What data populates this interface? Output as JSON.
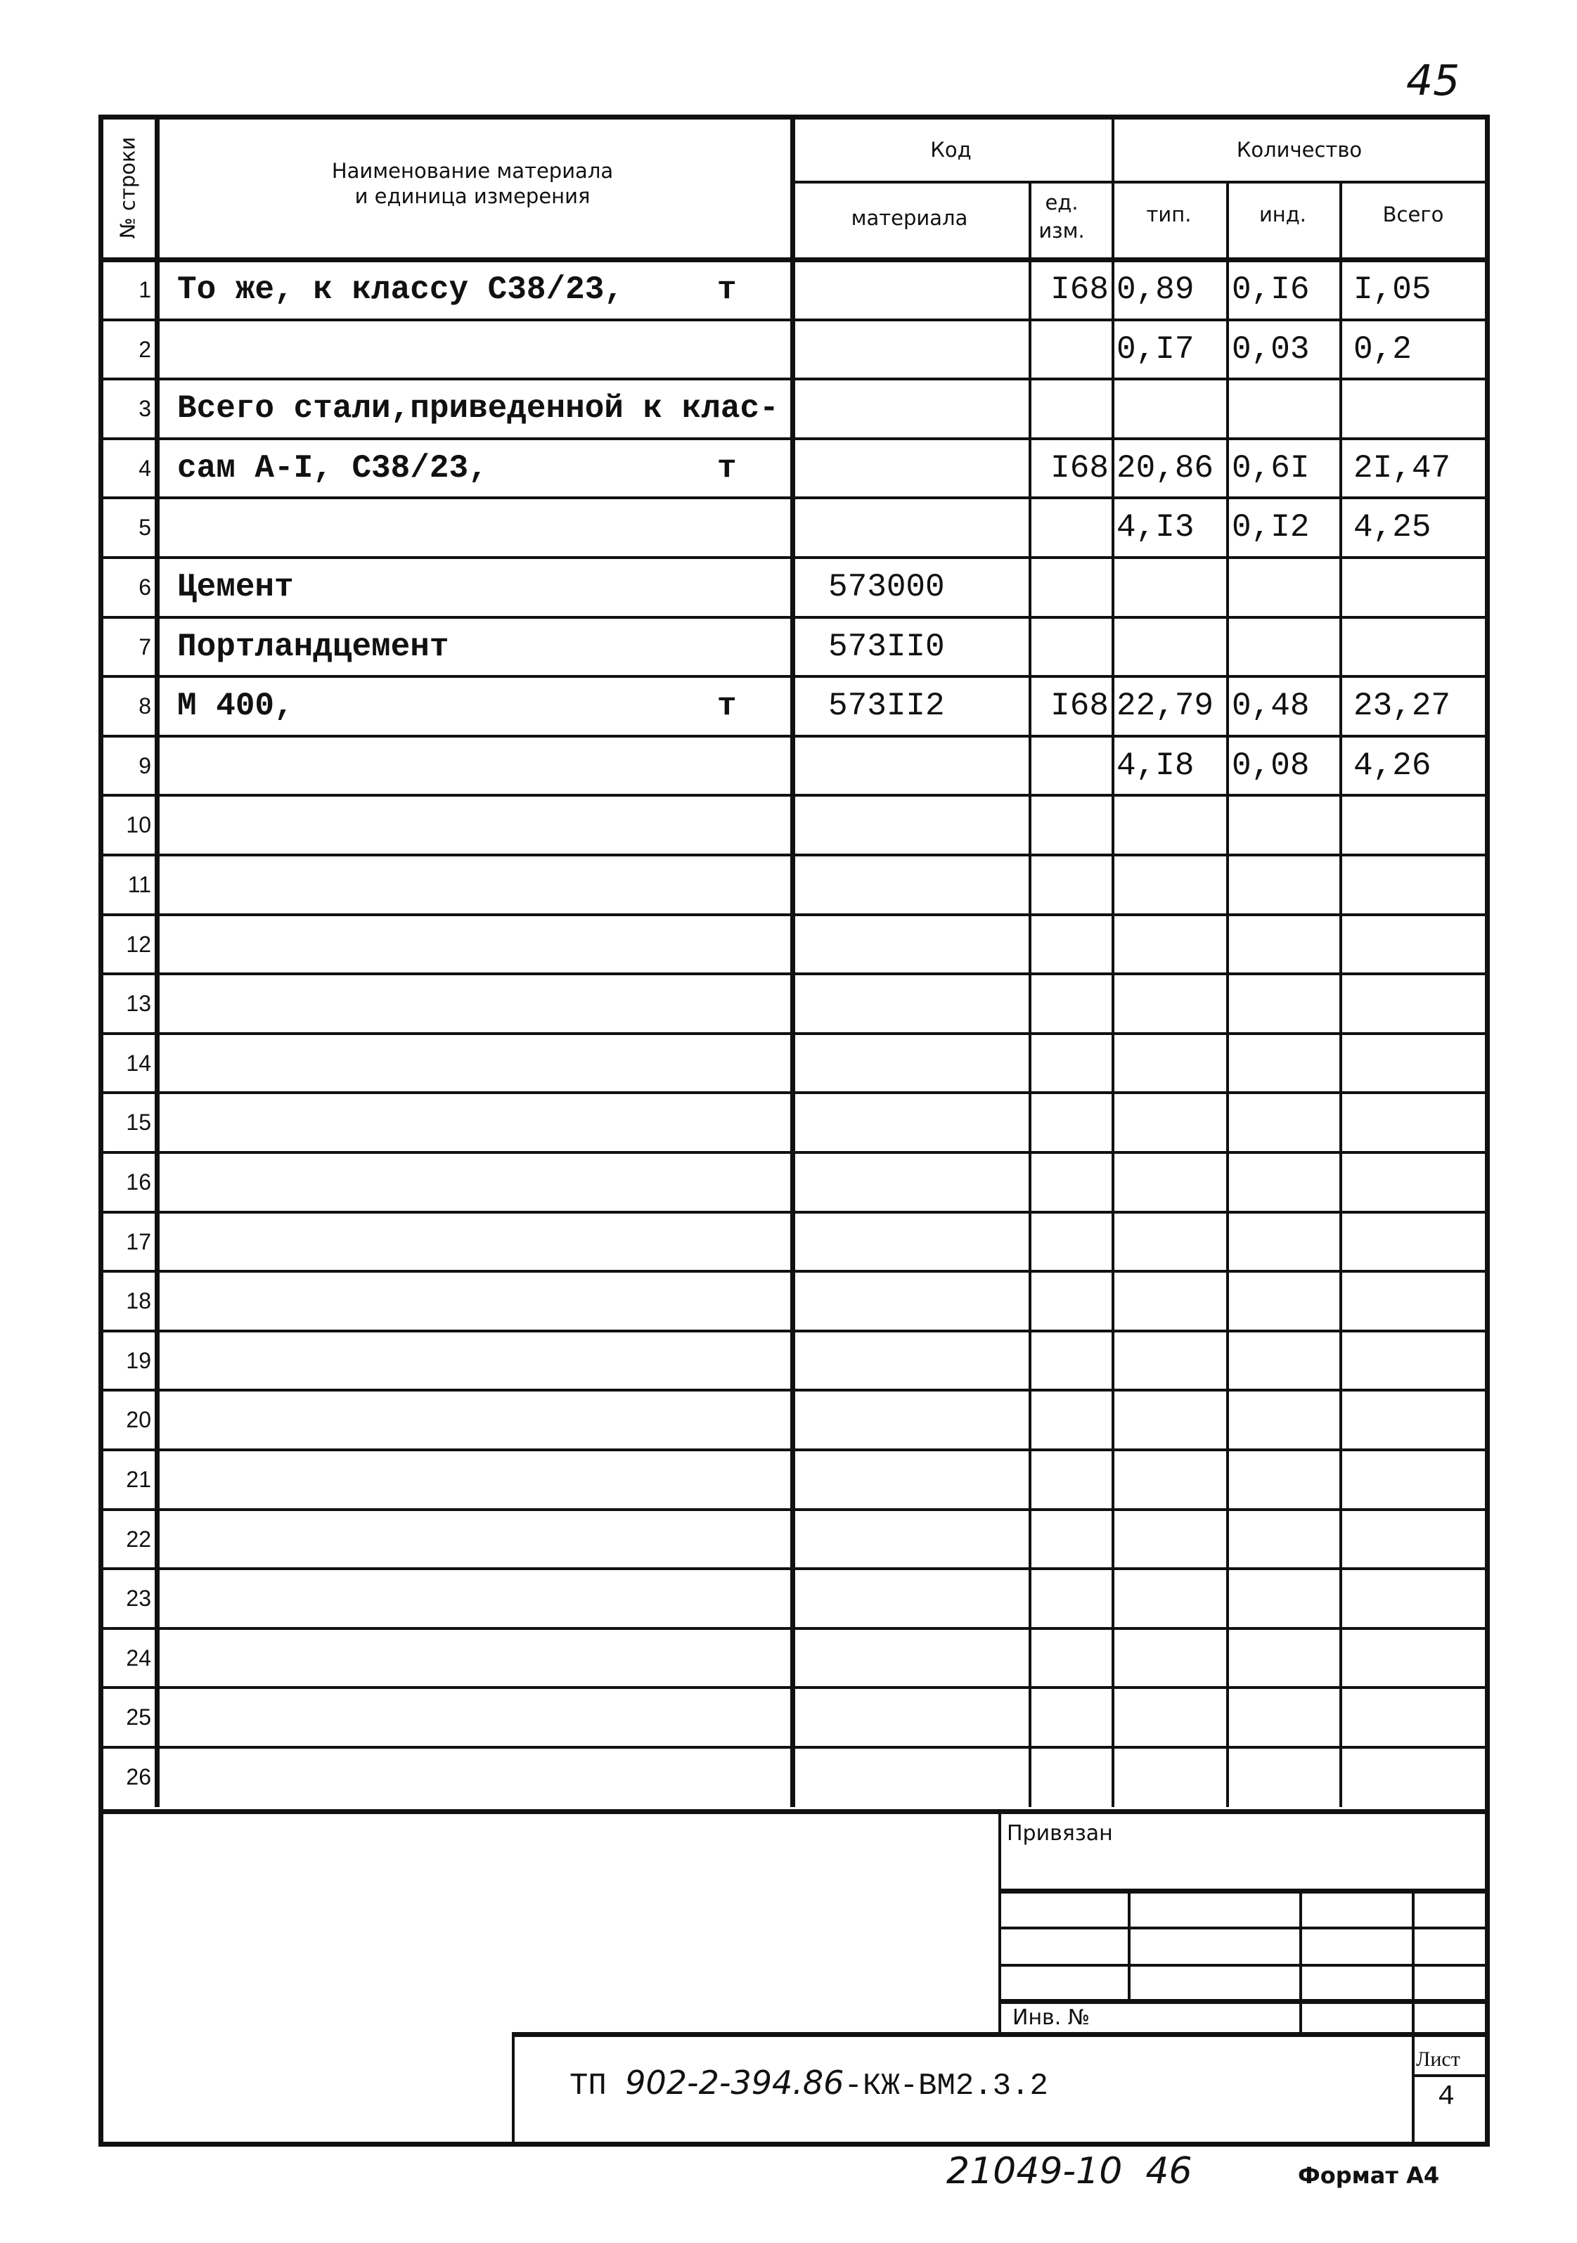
{
  "page_number": "45",
  "header": {
    "row_no": "№ строки",
    "name_line1": "Наименование материала",
    "name_line2": "и единица измерения",
    "code": "Код",
    "code_material": "материала",
    "code_unit": "ед. изм.",
    "quantity": "Количество",
    "qty_typ": "тип.",
    "qty_ind": "инд.",
    "qty_total": "Всего"
  },
  "rows": [
    {
      "n": "1",
      "name": "То же, к классу С38/23,",
      "unit": "т",
      "code": "",
      "ucode": "I68",
      "typ": "0,89",
      "ind": "0,I6",
      "total": "I,05"
    },
    {
      "n": "2",
      "name": "",
      "unit": "",
      "code": "",
      "ucode": "",
      "typ": "0,I7",
      "ind": "0,03",
      "total": "0,2"
    },
    {
      "n": "3",
      "name": "Всего стали,приведенной к клас-",
      "unit": "",
      "code": "",
      "ucode": "",
      "typ": "",
      "ind": "",
      "total": ""
    },
    {
      "n": "4",
      "name": "сам А-I, С38/23,",
      "unit": "т",
      "code": "",
      "ucode": "I68",
      "typ": "20,86",
      "ind": "0,6I",
      "total": "2I,47"
    },
    {
      "n": "5",
      "name": "",
      "unit": "",
      "code": "",
      "ucode": "",
      "typ": "4,I3",
      "ind": "0,I2",
      "total": "4,25"
    },
    {
      "n": "6",
      "name": "Цемент",
      "unit": "",
      "code": "573000",
      "ucode": "",
      "typ": "",
      "ind": "",
      "total": ""
    },
    {
      "n": "7",
      "name": "Портландцемент",
      "unit": "",
      "code": "573II0",
      "ucode": "",
      "typ": "",
      "ind": "",
      "total": ""
    },
    {
      "n": "8",
      "name": "М 400,",
      "unit": "т",
      "code": "573II2",
      "ucode": "I68",
      "typ": "22,79",
      "ind": "0,48",
      "total": "23,27"
    },
    {
      "n": "9",
      "name": "",
      "unit": "",
      "code": "",
      "ucode": "",
      "typ": "4,I8",
      "ind": "0,08",
      "total": "4,26"
    },
    {
      "n": "10"
    },
    {
      "n": "11"
    },
    {
      "n": "12"
    },
    {
      "n": "13"
    },
    {
      "n": "14"
    },
    {
      "n": "15"
    },
    {
      "n": "16"
    },
    {
      "n": "17"
    },
    {
      "n": "18"
    },
    {
      "n": "19"
    },
    {
      "n": "20"
    },
    {
      "n": "21"
    },
    {
      "n": "22"
    },
    {
      "n": "23"
    },
    {
      "n": "24"
    },
    {
      "n": "25"
    },
    {
      "n": "26"
    }
  ],
  "stamp": {
    "linked": "Привязан",
    "inv_no": "Инв. №",
    "doc_prefix": "ТП",
    "doc_number": "902-2-394.86",
    "doc_suffix": "-КЖ-ВМ2.3.2",
    "sheet_label": "Лист",
    "sheet_value": "4"
  },
  "footer": {
    "archive_no": "21049-10",
    "archive_page": "46",
    "format": "Формат А4"
  }
}
